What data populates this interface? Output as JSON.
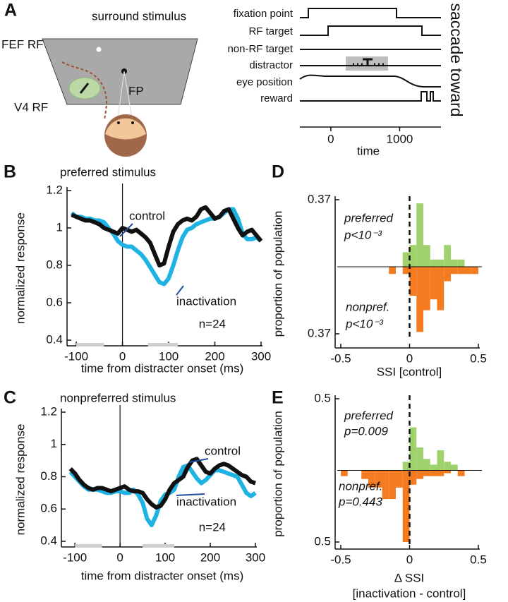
{
  "panel_a": {
    "label": "A",
    "texts": {
      "surround": "surround stimulus",
      "fef_rf": "FEF RF",
      "fp": "FP",
      "v4_rf": "V4 RF"
    },
    "timeline": {
      "rows": [
        "fixation point",
        "RF target",
        "non-RF target",
        "distractor",
        "eye position",
        "reward"
      ],
      "side_label": "saccade toward",
      "xlabel": "time",
      "xlim": [
        -450,
        1600
      ],
      "xticks": [
        0,
        1000
      ]
    }
  },
  "chart_data": [
    {
      "type": "line",
      "label": "B",
      "title": "preferred stimulus",
      "xlabel": "time from distracter onset (ms)",
      "ylabel": "normalized response",
      "x": [
        -110,
        -100,
        -90,
        -80,
        -70,
        -60,
        -50,
        -40,
        -30,
        -20,
        -10,
        0,
        10,
        20,
        30,
        40,
        50,
        60,
        70,
        80,
        90,
        100,
        110,
        120,
        130,
        140,
        150,
        160,
        170,
        180,
        190,
        200,
        210,
        220,
        230,
        240,
        250,
        260,
        270,
        280,
        290,
        300
      ],
      "series": [
        {
          "name": "inactivation",
          "color": "#1fb3e3",
          "values": [
            1.08,
            1.06,
            1.06,
            1.05,
            1.05,
            1.04,
            1.04,
            1.03,
            1.0,
            0.97,
            0.93,
            0.91,
            0.9,
            0.9,
            0.88,
            0.86,
            0.83,
            0.79,
            0.75,
            0.71,
            0.7,
            0.73,
            0.8,
            0.88,
            0.95,
            0.99,
            1.0,
            1.02,
            1.03,
            1.04,
            1.05,
            1.05,
            1.06,
            1.08,
            1.1,
            1.1,
            1.05,
            0.97,
            0.94,
            0.94,
            0.95,
            0.93
          ]
        },
        {
          "name": "control",
          "color": "#111111",
          "values": [
            1.07,
            1.06,
            1.05,
            1.04,
            1.04,
            1.03,
            1.02,
            1.0,
            0.99,
            0.98,
            0.97,
            1.0,
            0.99,
            0.98,
            0.99,
            0.97,
            0.95,
            0.92,
            0.86,
            0.8,
            0.81,
            0.9,
            0.98,
            1.02,
            1.04,
            1.05,
            1.04,
            1.06,
            1.1,
            1.11,
            1.08,
            1.05,
            1.06,
            1.09,
            1.1,
            1.05,
            1.0,
            0.96,
            0.98,
            0.99,
            0.96,
            0.93
          ]
        }
      ],
      "annotation": "n=24",
      "reference_line_x": 0,
      "shaded_windows": [
        [
          -100,
          -40
        ],
        [
          55,
          120
        ]
      ],
      "xlim": [
        -120,
        300
      ],
      "xticks": [
        -100,
        0,
        100,
        200,
        300
      ],
      "ylim": [
        0.4,
        1.2
      ],
      "yticks": [
        0.4,
        0.6,
        0.8,
        1,
        1.2
      ]
    },
    {
      "type": "line",
      "label": "C",
      "title": "nonpreferred stimulus",
      "xlabel": "time from distracter onset (ms)",
      "ylabel": "normalized response",
      "x": [
        -110,
        -100,
        -90,
        -80,
        -70,
        -60,
        -50,
        -40,
        -30,
        -20,
        -10,
        0,
        10,
        20,
        30,
        40,
        50,
        60,
        70,
        80,
        90,
        100,
        110,
        120,
        130,
        140,
        150,
        160,
        170,
        180,
        190,
        200,
        210,
        220,
        230,
        240,
        250,
        260,
        270,
        280,
        290,
        300
      ],
      "series": [
        {
          "name": "inactivation",
          "color": "#1fb3e3",
          "values": [
            0.83,
            0.8,
            0.77,
            0.74,
            0.72,
            0.72,
            0.72,
            0.71,
            0.7,
            0.7,
            0.71,
            0.71,
            0.7,
            0.7,
            0.72,
            0.69,
            0.64,
            0.54,
            0.5,
            0.56,
            0.65,
            0.69,
            0.7,
            0.72,
            0.8,
            0.86,
            0.87,
            0.83,
            0.79,
            0.76,
            0.78,
            0.81,
            0.84,
            0.84,
            0.83,
            0.82,
            0.81,
            0.8,
            0.75,
            0.7,
            0.68,
            0.7
          ]
        },
        {
          "name": "control",
          "color": "#111111",
          "values": [
            0.85,
            0.82,
            0.78,
            0.75,
            0.73,
            0.72,
            0.73,
            0.73,
            0.72,
            0.71,
            0.72,
            0.73,
            0.74,
            0.72,
            0.71,
            0.71,
            0.7,
            0.66,
            0.63,
            0.61,
            0.62,
            0.66,
            0.72,
            0.76,
            0.78,
            0.8,
            0.86,
            0.9,
            0.91,
            0.87,
            0.83,
            0.82,
            0.85,
            0.87,
            0.88,
            0.87,
            0.85,
            0.83,
            0.81,
            0.8,
            0.77,
            0.76
          ]
        }
      ],
      "annotation": "n=24",
      "reference_line_x": 0,
      "shaded_windows": [
        [
          -100,
          -40
        ],
        [
          50,
          120
        ]
      ],
      "xlim": [
        -130,
        300
      ],
      "xticks": [
        -100,
        0,
        100,
        200,
        300
      ],
      "ylim": [
        0.4,
        1.2
      ],
      "yticks": [
        0.4,
        0.6,
        0.8,
        1,
        1.2
      ]
    },
    {
      "type": "histogram",
      "label": "D",
      "xlabel": [
        "SSI [control]"
      ],
      "ylabel": "proportion of population",
      "bins": [
        -0.15,
        -0.1,
        -0.05,
        0,
        0.05,
        0.1,
        0.15,
        0.2,
        0.25,
        0.3,
        0.35,
        0.4,
        0.45,
        0.5
      ],
      "series": [
        {
          "name": "preferred",
          "color": "#9fd26d",
          "values": [
            0,
            0,
            0.08,
            0.12,
            0.35,
            0.12,
            0.04,
            0.04,
            0.12,
            0.04,
            0.04,
            0,
            0
          ],
          "annotation": "p<10⁻³"
        },
        {
          "name": "nonpref.",
          "color": "#f47b20",
          "values": [
            -0.04,
            0,
            -0.04,
            -0.16,
            -0.36,
            -0.24,
            -0.18,
            -0.24,
            -0.08,
            -0.04,
            -0.04,
            -0.04,
            -0.04
          ],
          "annotation": "p<10⁻³"
        }
      ],
      "reference_line_x": 0,
      "xlim": [
        -0.5,
        0.5
      ],
      "xticks": [
        -0.5,
        0,
        0.5
      ],
      "ylim": [
        -0.37,
        0.37
      ],
      "yticks": [
        {
          "value": -0.37,
          "label": "0.37"
        },
        {
          "value": 0.37,
          "label": "0.37"
        }
      ]
    },
    {
      "type": "histogram",
      "label": "E",
      "xlabel": [
        "Δ SSI",
        "[inactivation - control]"
      ],
      "ylabel": "proportion of population",
      "bins": [
        -0.5,
        -0.45,
        -0.4,
        -0.35,
        -0.3,
        -0.25,
        -0.2,
        -0.15,
        -0.1,
        -0.05,
        0,
        0.05,
        0.1,
        0.15,
        0.2,
        0.25,
        0.3,
        0.35,
        0.4,
        0.45
      ],
      "series": [
        {
          "name": "preferred",
          "color": "#9fd26d",
          "values": [
            0,
            0,
            0,
            0,
            0,
            0,
            0,
            0,
            0,
            0.06,
            0.3,
            0.16,
            0.08,
            0.04,
            0.14,
            0.06,
            0.04,
            0,
            0
          ],
          "annotation": "p=0.009"
        },
        {
          "name": "nonpref.",
          "color": "#f47b20",
          "values": [
            -0.04,
            0,
            0,
            -0.06,
            -0.12,
            -0.12,
            -0.2,
            -0.2,
            -0.12,
            -0.5,
            -0.1,
            -0.06,
            -0.04,
            -0.04,
            -0.04,
            -0.02,
            0,
            -0.04,
            0
          ],
          "annotation": "p=0.443"
        }
      ],
      "reference_line_x": 0,
      "xlim": [
        -0.5,
        0.5
      ],
      "xticks": [
        -0.5,
        0,
        0.5
      ],
      "ylim": [
        -0.5,
        0.5
      ],
      "yticks": [
        {
          "value": -0.5,
          "label": "0.5"
        },
        {
          "value": 0.5,
          "label": "0.5"
        }
      ]
    }
  ]
}
